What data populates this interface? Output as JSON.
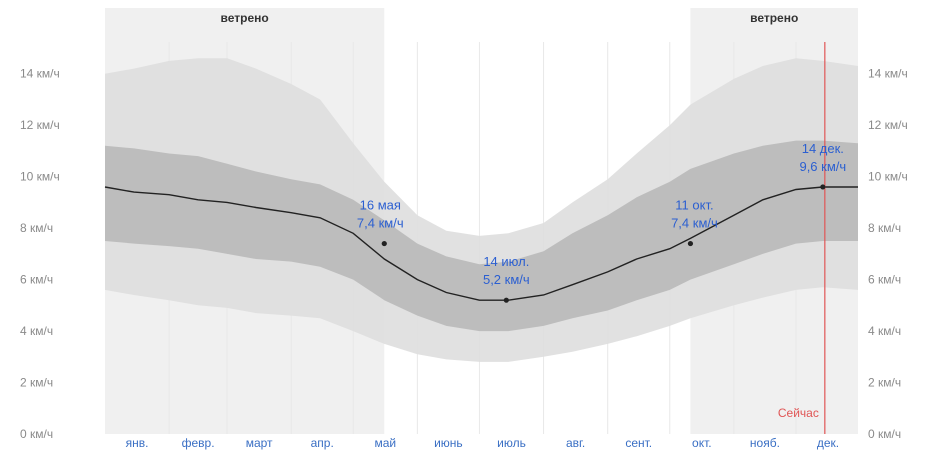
{
  "chart_data": {
    "type": "area",
    "title": "",
    "xlabel": "",
    "ylabel": "",
    "ylim": [
      0,
      15
    ],
    "y_ticks": [
      {
        "value": 0,
        "label": "0 км/ч"
      },
      {
        "value": 2,
        "label": "2 км/ч"
      },
      {
        "value": 4,
        "label": "4 км/ч"
      },
      {
        "value": 6,
        "label": "6 км/ч"
      },
      {
        "value": 8,
        "label": "8 км/ч"
      },
      {
        "value": 10,
        "label": "10 км/ч"
      },
      {
        "value": 12,
        "label": "12 км/ч"
      },
      {
        "value": 14,
        "label": "14 км/ч"
      }
    ],
    "months": [
      "янв.",
      "февр.",
      "март",
      "апр.",
      "май",
      "июнь",
      "июль",
      "авг.",
      "сент.",
      "окт.",
      "нояб.",
      "дек."
    ],
    "x_day_of_year": [
      1,
      15,
      32,
      46,
      60,
      74,
      91,
      105,
      121,
      136,
      152,
      166,
      182,
      196,
      213,
      227,
      244,
      258,
      274,
      284,
      305,
      319,
      335,
      348,
      365
    ],
    "series": [
      {
        "role": "p90",
        "values": [
          14.0,
          14.2,
          14.5,
          14.6,
          14.6,
          14.2,
          13.6,
          13.0,
          11.3,
          9.8,
          8.5,
          7.9,
          7.7,
          7.8,
          8.2,
          9.0,
          9.9,
          10.9,
          12.0,
          12.8,
          13.8,
          14.3,
          14.6,
          14.5,
          14.3
        ]
      },
      {
        "role": "p75",
        "values": [
          11.2,
          11.1,
          10.9,
          10.8,
          10.5,
          10.2,
          9.9,
          9.7,
          9.1,
          8.3,
          7.4,
          6.9,
          6.6,
          6.7,
          7.1,
          7.8,
          8.5,
          9.2,
          9.8,
          10.3,
          10.9,
          11.2,
          11.4,
          11.4,
          11.3
        ]
      },
      {
        "role": "mean",
        "values": [
          9.6,
          9.4,
          9.3,
          9.1,
          9.0,
          8.8,
          8.6,
          8.4,
          7.8,
          6.8,
          6.0,
          5.5,
          5.2,
          5.2,
          5.4,
          5.8,
          6.3,
          6.8,
          7.2,
          7.6,
          8.5,
          9.1,
          9.5,
          9.6,
          9.6
        ]
      },
      {
        "role": "p25",
        "values": [
          7.5,
          7.4,
          7.3,
          7.2,
          7.0,
          6.8,
          6.7,
          6.5,
          6.0,
          5.2,
          4.6,
          4.2,
          4.0,
          4.0,
          4.2,
          4.5,
          4.8,
          5.2,
          5.6,
          6.0,
          6.6,
          7.0,
          7.4,
          7.5,
          7.5
        ]
      },
      {
        "role": "p10",
        "values": [
          5.6,
          5.4,
          5.2,
          5.0,
          4.9,
          4.7,
          4.6,
          4.5,
          4.0,
          3.5,
          3.1,
          2.9,
          2.8,
          2.8,
          3.0,
          3.2,
          3.5,
          3.8,
          4.2,
          4.5,
          5.0,
          5.3,
          5.6,
          5.7,
          5.6
        ]
      }
    ],
    "windy_periods": [
      {
        "label": "ветрено",
        "start_day": 1,
        "end_day": 136
      },
      {
        "label": "ветрено",
        "start_day": 284,
        "end_day": 365
      }
    ],
    "annotations": [
      {
        "day": 136,
        "value": 7.4,
        "date": "16 мая",
        "speed": "7,4 км/ч",
        "align": "left"
      },
      {
        "day": 195,
        "value": 5.2,
        "date": "14 июл.",
        "speed": "5,2 км/ч",
        "align": "center"
      },
      {
        "day": 284,
        "value": 7.4,
        "date": "11 окт.",
        "speed": "7,4 км/ч",
        "align": "right"
      },
      {
        "day": 348,
        "value": 9.6,
        "date": "14 дек.",
        "speed": "9,6 км/ч",
        "align": "center"
      }
    ],
    "now_marker": {
      "day": 348,
      "label": "Сейчас"
    },
    "colors": {
      "band_10_90": "#dedede",
      "band_25_75": "#b9b9b9",
      "windy_shade": "#f0f0f0",
      "mean_line": "#222222",
      "annotation_text": "#2b5fd1",
      "month_text": "#3a6fc4",
      "now_line": "#e05555",
      "tick_text": "#8a8a8a"
    }
  }
}
